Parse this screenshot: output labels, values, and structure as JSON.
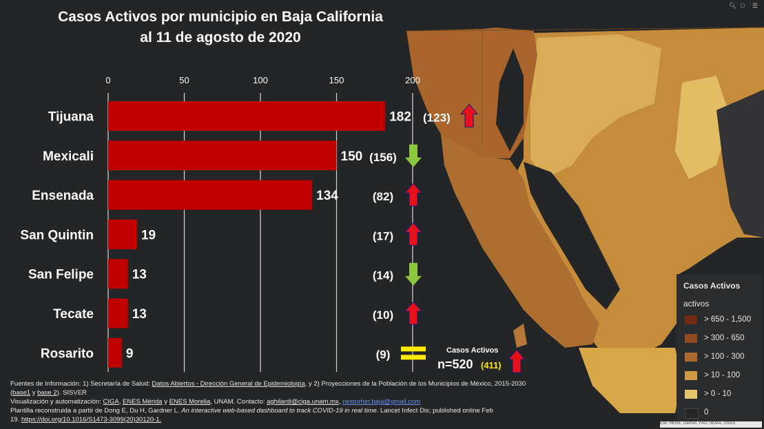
{
  "title_line1": "Casos Activos por municipio en Baja California",
  "title_line2": "al 11 de agosto de 2020",
  "chart_data": {
    "type": "bar",
    "orientation": "horizontal",
    "title": "Casos Activos por municipio en Baja California al 11 de agosto de 2020",
    "categories": [
      "Tijuana",
      "Mexicali",
      "Ensenada",
      "San Quintin",
      "San Felipe",
      "Tecate",
      "Rosarito"
    ],
    "values": [
      182,
      150,
      134,
      19,
      13,
      13,
      9
    ],
    "value_labels": [
      "182",
      "150",
      "134",
      "19",
      "13",
      "13",
      "9"
    ],
    "previous_labels": [
      "(123)",
      "(156)",
      "(82)",
      "(17)",
      "(14)",
      "(10)",
      "(9)"
    ],
    "trend": [
      "up",
      "down",
      "up",
      "up",
      "down",
      "up",
      "equal"
    ],
    "xlim": [
      0,
      200
    ],
    "xticks": [
      "0",
      "50",
      "100",
      "150",
      "200"
    ],
    "grid": true,
    "bar_color": "#c00000"
  },
  "total": {
    "label": "Casos Activos",
    "value": "n=520",
    "previous": "(411)",
    "trend": "up"
  },
  "colors": {
    "up_arrow": "#e8101a",
    "down_arrow": "#8cc63f",
    "equal_sign": "#ffea00",
    "previous_total": "#ffea00"
  },
  "legend": {
    "title": "Casos Activos",
    "subtitle": "activos",
    "items": [
      {
        "label": "> 650 - 1,500",
        "color": "#6e2a12"
      },
      {
        "label": "> 300 - 650",
        "color": "#8f4a1f"
      },
      {
        "label": "> 100 - 300",
        "color": "#ad6a2e"
      },
      {
        "label": "> 10 - 100",
        "color": "#cf9845"
      },
      {
        "label": "> 0 - 10",
        "color": "#e6c469"
      },
      {
        "label": "0",
        "color": "#262626"
      }
    ]
  },
  "toolbar": {
    "icons": [
      "search-icon",
      "bookmark-icon",
      "menu-icon"
    ]
  },
  "footer": {
    "l1_a": "Fuentes de Información: 1) Secretaría de Salud: ",
    "l1_b": "Datos Abiertos - Dirección General de Epidemiología",
    "l1_c": ", y 2) Proyecciones de la Población de los Municipios de México, 2015-2030",
    "l2_a": "(",
    "l2_b": "base1",
    "l2_c": " y ",
    "l2_d": "base 2",
    "l2_e": "). SISVER",
    "l3_a": " Visualización y automatización: ",
    "l3_b": "CIGA",
    "l3_c": ", ",
    "l3_d": "ENES Mérida",
    "l3_e": " y ",
    "l3_f": "ENES Morelia",
    "l3_g": ", UNAM. Contacto: ",
    "l3_h": "aghilardi@ciga.unam.mx",
    "l3_i": ", ",
    "l3_j": "nestorher.baja@gmail.com",
    "l4_a": " Plantilla reconstruida a partir de Dong E, Du H, Gardner L. ",
    "l4_b": "An interactive web-based dashboard to track COVID-19 in real time",
    "l4_c": ". Lancet Infect Dis; published online Feb",
    "l5_a": "19. ",
    "l5_b": "https://doi.org/10.1016/S1473-3099(20)30120-1."
  },
  "attribution": "Esri, HERE, Garmin, FAO, NOAA, USGS"
}
